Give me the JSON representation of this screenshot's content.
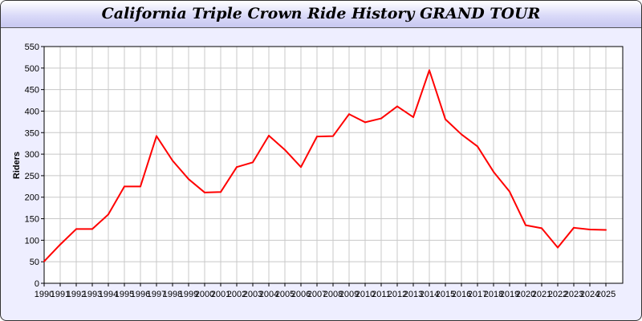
{
  "chart_data": {
    "type": "line",
    "title": "California Triple Crown Ride History GRAND TOUR",
    "xlabel": "",
    "ylabel": "Riders",
    "x": [
      1990,
      1991,
      1992,
      1993,
      1994,
      1995,
      1996,
      1997,
      1998,
      1999,
      2000,
      2001,
      2002,
      2003,
      2004,
      2005,
      2006,
      2007,
      2008,
      2009,
      2010,
      2011,
      2012,
      2013,
      2014,
      2015,
      2016,
      2017,
      2018,
      2019,
      2020,
      2021,
      2022,
      2023,
      2024,
      2025
    ],
    "values": [
      51,
      90,
      126,
      126,
      160,
      225,
      225,
      342,
      285,
      242,
      211,
      212,
      270,
      281,
      343,
      310,
      270,
      341,
      342,
      393,
      374,
      383,
      411,
      386,
      495,
      381,
      346,
      318,
      259,
      213,
      135,
      128,
      83,
      129,
      125,
      124
    ],
    "ylim": [
      0,
      550
    ],
    "yticks": [
      0,
      50,
      100,
      150,
      200,
      250,
      300,
      350,
      400,
      450,
      500,
      550
    ],
    "grid": true,
    "line_color": "#ff0000"
  }
}
